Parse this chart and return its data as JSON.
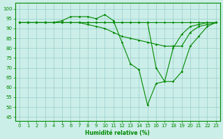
{
  "xlabel": "Humidité relative (%)",
  "background_color": "#cceee8",
  "grid_color": "#99cccc",
  "line_color": "#008800",
  "x_ticks": [
    0,
    1,
    2,
    3,
    4,
    5,
    6,
    7,
    8,
    9,
    10,
    11,
    12,
    13,
    14,
    15,
    16,
    17,
    18,
    19,
    20,
    21,
    22,
    23
  ],
  "y_ticks": [
    45,
    50,
    55,
    60,
    65,
    70,
    75,
    80,
    85,
    90,
    95,
    100
  ],
  "ylim": [
    43,
    103
  ],
  "xlim": [
    -0.5,
    23.5
  ],
  "series": [
    [
      93,
      93,
      93,
      93,
      93,
      93,
      93,
      93,
      93,
      93,
      93,
      93,
      93,
      93,
      93,
      93,
      93,
      93,
      93,
      93,
      93,
      93,
      93,
      93
    ],
    [
      93,
      93,
      93,
      93,
      93,
      94,
      96,
      96,
      96,
      95,
      97,
      94,
      83,
      72,
      69,
      51,
      62,
      63,
      80,
      87,
      91,
      92,
      93,
      93
    ],
    [
      93,
      93,
      93,
      93,
      93,
      93,
      93,
      93,
      92,
      91,
      90,
      88,
      86,
      85,
      84,
      83,
      82,
      81,
      81,
      81,
      88,
      91,
      92,
      93
    ],
    [
      93,
      93,
      93,
      93,
      93,
      93,
      93,
      93,
      93,
      93,
      93,
      93,
      93,
      93,
      93,
      93,
      70,
      63,
      63,
      68,
      81,
      86,
      91,
      93
    ]
  ]
}
